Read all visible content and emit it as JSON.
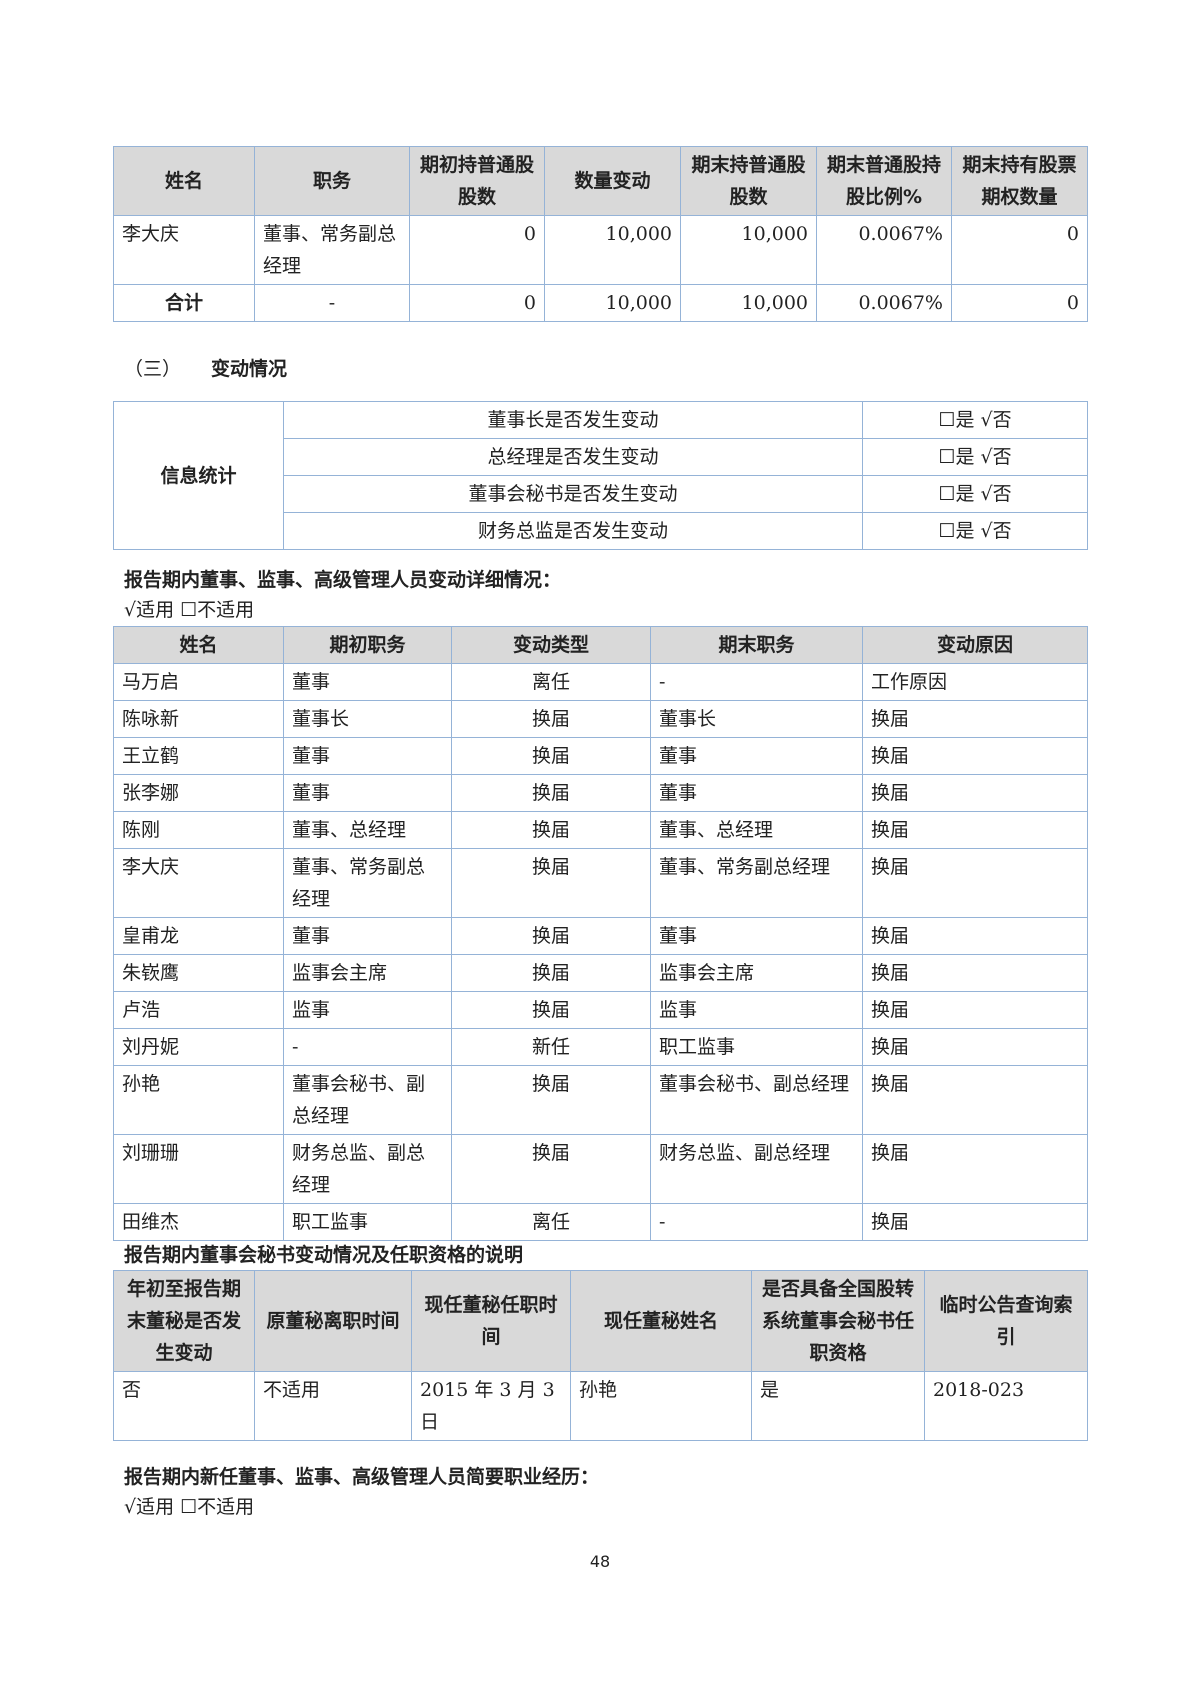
{
  "holdings_table": {
    "headers": [
      "姓名",
      "职务",
      "期初持普通股股数",
      "数量变动",
      "期末持普通股股数",
      "期末普通股持股比例%",
      "期末持有股票期权数量"
    ],
    "rows": [
      [
        "李大庆",
        "董事、常务副总经理",
        "0",
        "10,000",
        "10,000",
        "0.0067%",
        "0"
      ]
    ],
    "total": [
      "合计",
      "-",
      "0",
      "10,000",
      "10,000",
      "0.0067%",
      "0"
    ]
  },
  "section3": {
    "num": "（三）",
    "title": "变动情况"
  },
  "info_table": {
    "label": "信息统计",
    "rows": [
      [
        "董事长是否发生变动",
        "☐是 √否"
      ],
      [
        "总经理是否发生变动",
        "☐是 √否"
      ],
      [
        "董事会秘书是否发生变动",
        "☐是 √否"
      ],
      [
        "财务总监是否发生变动",
        "☐是 √否"
      ]
    ]
  },
  "detail_heading": "报告期内董事、监事、高级管理人员变动详细情况：",
  "detail_applicable": "√适用 ☐不适用",
  "change_table": {
    "headers": [
      "姓名",
      "期初职务",
      "变动类型",
      "期末职务",
      "变动原因"
    ],
    "rows": [
      [
        "马万启",
        "董事",
        "离任",
        "-",
        "工作原因"
      ],
      [
        "陈咏新",
        "董事长",
        "换届",
        "董事长",
        "换届"
      ],
      [
        "王立鹤",
        "董事",
        "换届",
        "董事",
        "换届"
      ],
      [
        "张李娜",
        "董事",
        "换届",
        "董事",
        "换届"
      ],
      [
        "陈刚",
        "董事、总经理",
        "换届",
        "董事、总经理",
        "换届"
      ],
      [
        "李大庆",
        "董事、常务副总经理",
        "换届",
        "董事、常务副总经理",
        "换届"
      ],
      [
        "皇甫龙",
        "董事",
        "换届",
        "董事",
        "换届"
      ],
      [
        "朱嵚鹰",
        "监事会主席",
        "换届",
        "监事会主席",
        "换届"
      ],
      [
        "卢浩",
        "监事",
        "换届",
        "监事",
        "换届"
      ],
      [
        "刘丹妮",
        "-",
        "新任",
        "职工监事",
        "换届"
      ],
      [
        "孙艳",
        "董事会秘书、副总经理",
        "换届",
        "董事会秘书、副总经理",
        "换届"
      ],
      [
        "刘珊珊",
        "财务总监、副总经理",
        "换届",
        "财务总监、副总经理",
        "换届"
      ],
      [
        "田维杰",
        "职工监事",
        "离任",
        "-",
        "换届"
      ]
    ]
  },
  "secretary_heading": "报告期内董事会秘书变动情况及任职资格的说明",
  "secretary_table": {
    "headers": [
      "年初至报告期末董秘是否发生变动",
      "原董秘离职时间",
      "现任董秘任职时间",
      "现任董秘姓名",
      "是否具备全国股转系统董事会秘书任职资格",
      "临时公告查询索引"
    ],
    "rows": [
      [
        "否",
        "不适用",
        "2015 年 3 月 3 日",
        "孙艳",
        "是",
        "2018-023"
      ]
    ]
  },
  "new_heading": "报告期内新任董事、监事、高级管理人员简要职业经历：",
  "new_applicable": "√适用 ☐不适用",
  "page_number": "48"
}
